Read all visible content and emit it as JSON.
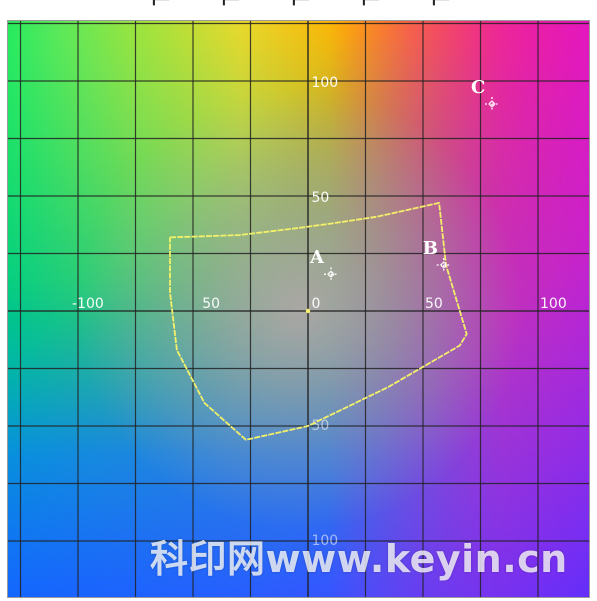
{
  "diagram": {
    "watermark": "科印网www.keyin.cn",
    "axis": {
      "a_range": [
        -130,
        130
      ],
      "b_range": [
        -130,
        130
      ],
      "tick_values_a": [
        -100,
        -50,
        0,
        50,
        100
      ],
      "tick_values_b": [
        -100,
        -50,
        0,
        50,
        100
      ],
      "labels": [
        "100",
        "50",
        "-100",
        "50",
        "0",
        "50",
        "100",
        "50",
        "100"
      ]
    },
    "gamut_outline": [
      [
        -60,
        32
      ],
      [
        -30,
        33
      ],
      [
        -5,
        36
      ],
      [
        10,
        38
      ],
      [
        30,
        41
      ],
      [
        57,
        47
      ],
      [
        60,
        20
      ],
      [
        69,
        -10
      ],
      [
        66,
        -15
      ],
      [
        35,
        -33
      ],
      [
        0,
        -50
      ],
      [
        -27,
        -56
      ],
      [
        -45,
        -40
      ],
      [
        -57,
        -17
      ],
      [
        -60,
        8
      ],
      [
        -60,
        32
      ]
    ],
    "points": [
      {
        "label": "A",
        "a": 10,
        "b": 16
      },
      {
        "label": "B",
        "a": 59,
        "b": 20
      },
      {
        "label": "C",
        "a": 80,
        "b": 90
      }
    ],
    "colors": {
      "grid": "#222222",
      "outline": "#f3f06a",
      "label": "#ffffff"
    }
  }
}
